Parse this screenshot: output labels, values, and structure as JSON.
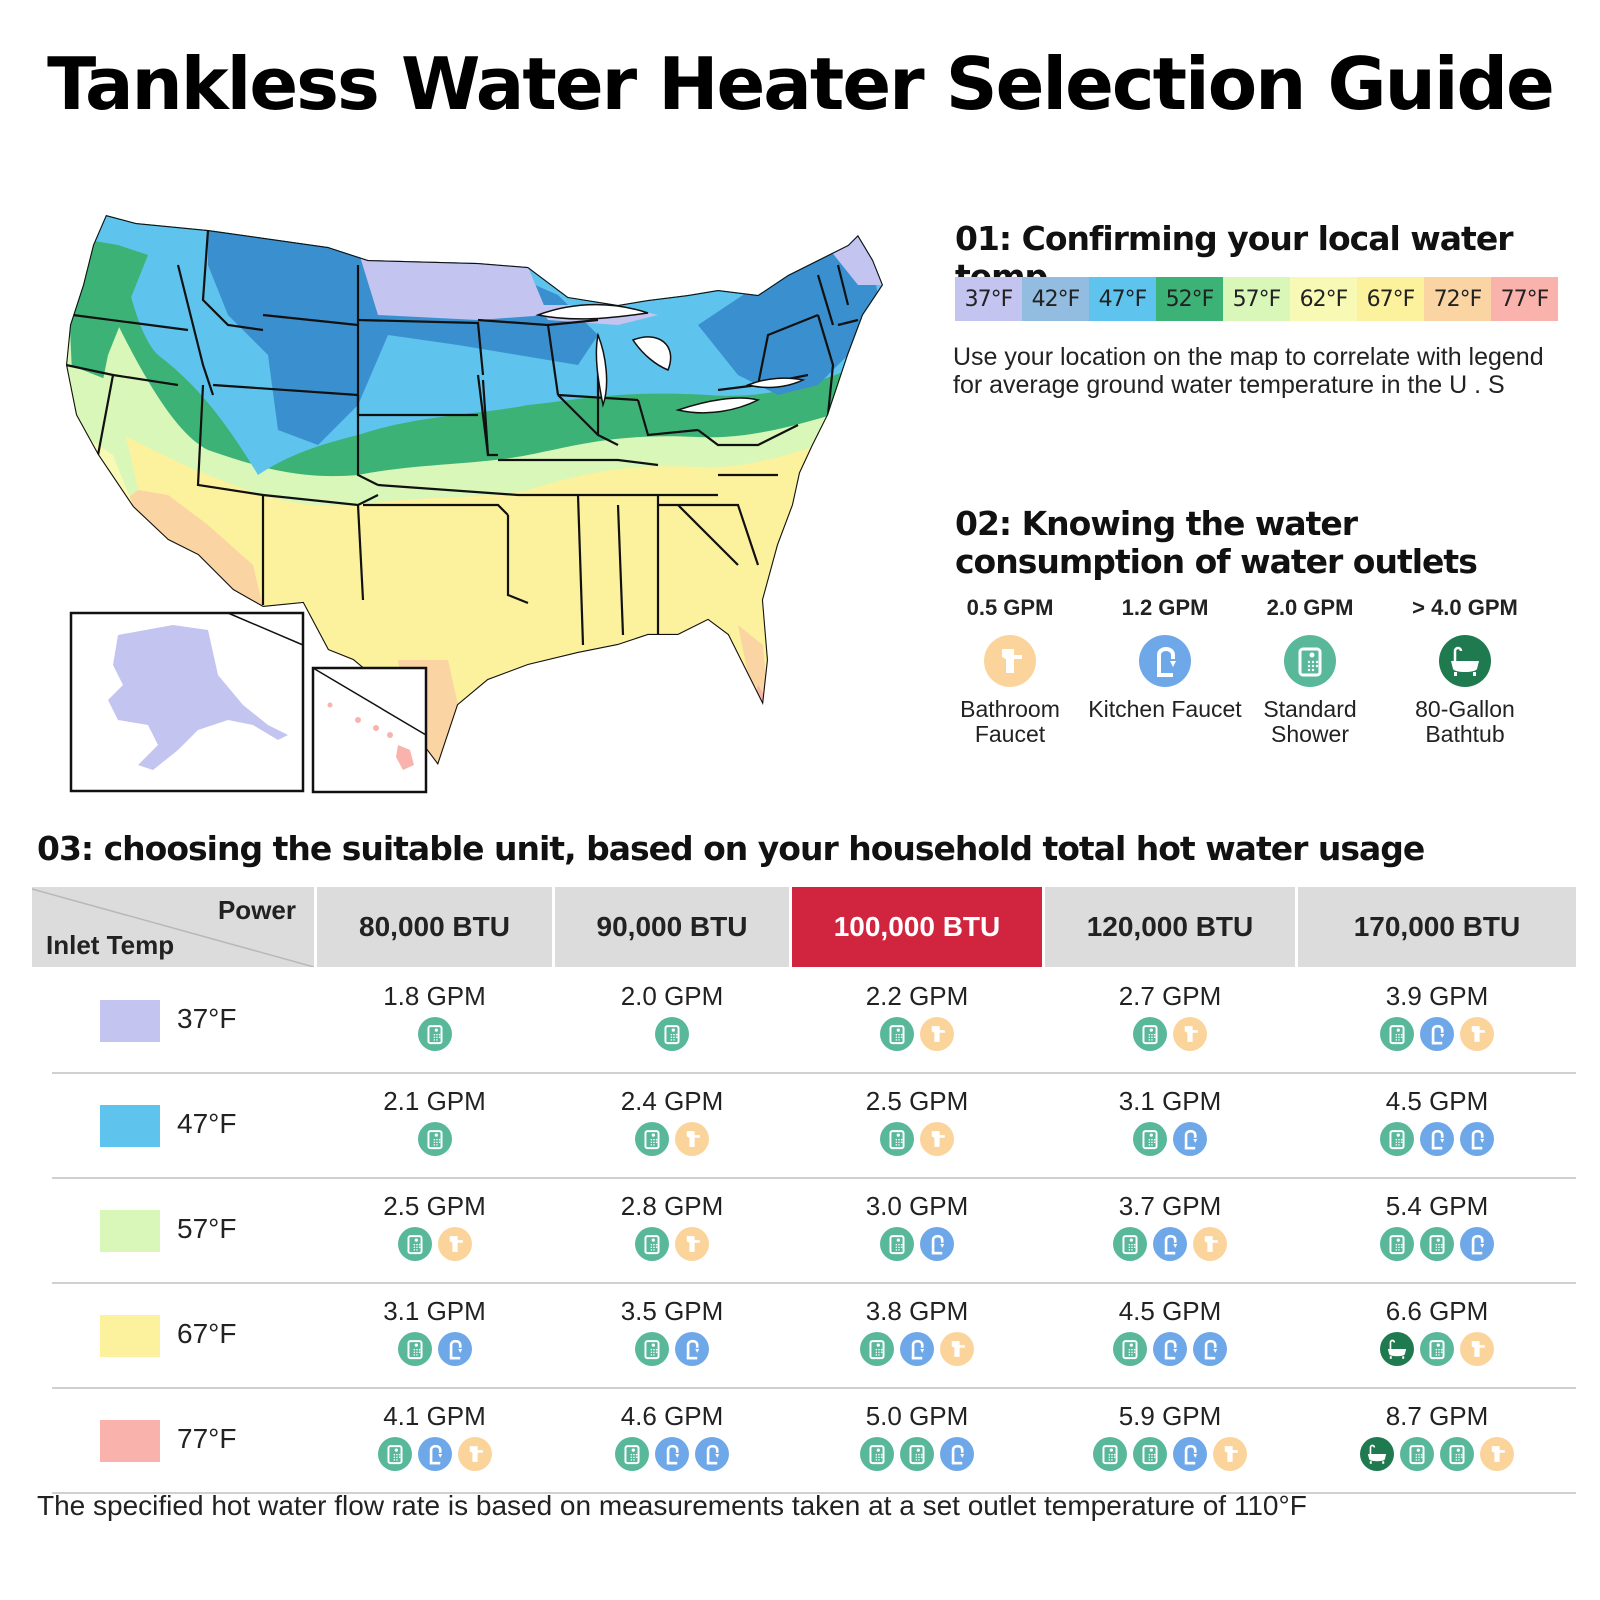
{
  "title": "Tankless Water Heater Selection Guide",
  "section1": {
    "heading": "01:  Confirming your local water temp",
    "legend": [
      {
        "label": "37°F",
        "color": "#c3c4f0"
      },
      {
        "label": "42°F",
        "color": "#93bde0"
      },
      {
        "label": "47°F",
        "color": "#5ec3ed"
      },
      {
        "label": "52°F",
        "color": "#3db276"
      },
      {
        "label": "57°F",
        "color": "#d8f7b9"
      },
      {
        "label": "62°F",
        "color": "#f8f9b5"
      },
      {
        "label": "67°F",
        "color": "#fcf19c"
      },
      {
        "label": "72°F",
        "color": "#fbd4a4"
      },
      {
        "label": "77°F",
        "color": "#f9b3ac"
      }
    ],
    "description": "Use your location on the map to correlate with legend for average ground water temperature in the U . S"
  },
  "section2": {
    "heading": "02:  Knowing the water consumption of water outlets",
    "outlets": [
      {
        "gpm": "0.5 GPM",
        "label": "Bathroom Faucet",
        "icon": "bathroom-faucet-icon",
        "color": "#fbd49c"
      },
      {
        "gpm": "1.2 GPM",
        "label": "Kitchen Faucet",
        "icon": "kitchen-faucet-icon",
        "color": "#6fa8e8"
      },
      {
        "gpm": "2.0 GPM",
        "label": "Standard Shower",
        "icon": "shower-icon",
        "color": "#59b89a"
      },
      {
        "gpm": "> 4.0 GPM",
        "label": "80-Gallon Bathtub",
        "icon": "bathtub-icon",
        "color": "#1f7a4f"
      }
    ]
  },
  "section3": {
    "heading": "03:  choosing the suitable unit, based on your household total hot water usage",
    "corner_power": "Power",
    "corner_inlet": "Inlet Temp",
    "columns": [
      "80,000 BTU",
      "90,000 BTU",
      "100,000 BTU",
      "120,000 BTU",
      "170,000 BTU"
    ],
    "highlight_column": 2,
    "rows": [
      {
        "temp": "37°F",
        "color": "#c3c4f0",
        "cells": [
          {
            "gpm": "1.8 GPM",
            "icons": [
              "shower"
            ]
          },
          {
            "gpm": "2.0 GPM",
            "icons": [
              "shower"
            ]
          },
          {
            "gpm": "2.2 GPM",
            "icons": [
              "shower",
              "bath"
            ]
          },
          {
            "gpm": "2.7 GPM",
            "icons": [
              "shower",
              "bath"
            ]
          },
          {
            "gpm": "3.9 GPM",
            "icons": [
              "shower",
              "kitchen",
              "bath"
            ]
          }
        ]
      },
      {
        "temp": "47°F",
        "color": "#5ec3ed",
        "cells": [
          {
            "gpm": "2.1 GPM",
            "icons": [
              "shower"
            ]
          },
          {
            "gpm": "2.4 GPM",
            "icons": [
              "shower",
              "bath"
            ]
          },
          {
            "gpm": "2.5 GPM",
            "icons": [
              "shower",
              "bath"
            ]
          },
          {
            "gpm": "3.1 GPM",
            "icons": [
              "shower",
              "kitchen"
            ]
          },
          {
            "gpm": "4.5 GPM",
            "icons": [
              "shower",
              "kitchen",
              "kitchen"
            ]
          }
        ]
      },
      {
        "temp": "57°F",
        "color": "#d8f7b9",
        "cells": [
          {
            "gpm": "2.5 GPM",
            "icons": [
              "shower",
              "bath"
            ]
          },
          {
            "gpm": "2.8 GPM",
            "icons": [
              "shower",
              "bath"
            ]
          },
          {
            "gpm": "3.0 GPM",
            "icons": [
              "shower",
              "kitchen"
            ]
          },
          {
            "gpm": "3.7 GPM",
            "icons": [
              "shower",
              "kitchen",
              "bath"
            ]
          },
          {
            "gpm": "5.4 GPM",
            "icons": [
              "shower",
              "shower",
              "kitchen"
            ]
          }
        ]
      },
      {
        "temp": "67°F",
        "color": "#fcf19c",
        "cells": [
          {
            "gpm": "3.1 GPM",
            "icons": [
              "shower",
              "kitchen"
            ]
          },
          {
            "gpm": "3.5 GPM",
            "icons": [
              "shower",
              "kitchen"
            ]
          },
          {
            "gpm": "3.8 GPM",
            "icons": [
              "shower",
              "kitchen",
              "bath"
            ]
          },
          {
            "gpm": "4.5 GPM",
            "icons": [
              "shower",
              "kitchen",
              "kitchen"
            ]
          },
          {
            "gpm": "6.6 GPM",
            "icons": [
              "tub",
              "shower",
              "bath"
            ]
          }
        ]
      },
      {
        "temp": "77°F",
        "color": "#f9b3ac",
        "cells": [
          {
            "gpm": "4.1 GPM",
            "icons": [
              "shower",
              "kitchen",
              "bath"
            ]
          },
          {
            "gpm": "4.6 GPM",
            "icons": [
              "shower",
              "kitchen",
              "kitchen"
            ]
          },
          {
            "gpm": "5.0 GPM",
            "icons": [
              "shower",
              "shower",
              "kitchen"
            ]
          },
          {
            "gpm": "5.9 GPM",
            "icons": [
              "shower",
              "shower",
              "kitchen",
              "bath"
            ]
          },
          {
            "gpm": "8.7 GPM",
            "icons": [
              "tub",
              "shower",
              "shower",
              "bath"
            ]
          }
        ]
      }
    ]
  },
  "footnote": "The specified hot water flow rate is based on measurements taken at a set outlet temperature of 110°F"
}
